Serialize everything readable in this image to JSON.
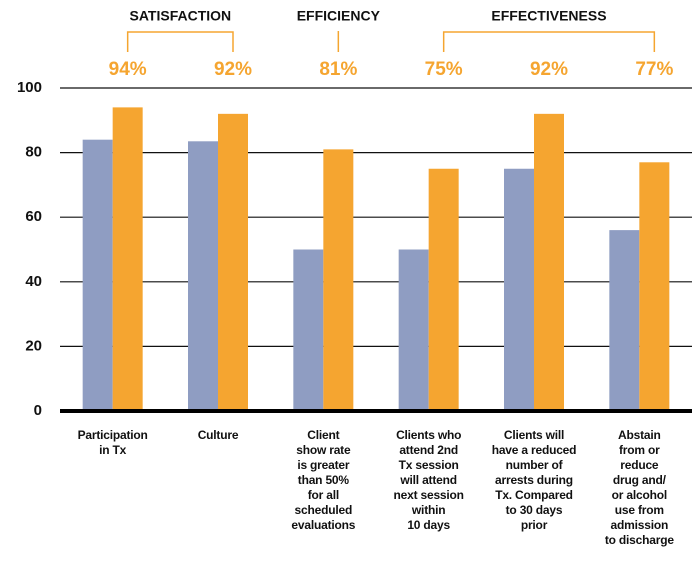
{
  "chart_data": {
    "type": "bar",
    "categories": [
      "Participation\nin Tx",
      "Culture",
      "Client\nshow rate\nis greater\nthan 50%\nfor all\nscheduled\nevaluations",
      "Clients who\nattend 2nd\nTx session\nwill attend\nnext session\nwithin\n10 days",
      "Clients will\nhave a reduced\nnumber of\narrests during\nTx. Compared\nto 30 days\nprior",
      "Abstain\nfrom or\nreduce\ndrug and/\nor alcohol\nuse from\nadmission\nto discharge"
    ],
    "series": [
      {
        "color": "#8f9dc2",
        "values": [
          84,
          83.5,
          50,
          50,
          75,
          56
        ]
      },
      {
        "color": "#f5a530",
        "values": [
          94,
          92,
          81,
          75,
          92,
          77
        ],
        "value_labels": [
          "94%",
          "92%",
          "81%",
          "75%",
          "92%",
          "77%"
        ]
      }
    ],
    "annotations": [
      {
        "text": "SATISFACTION",
        "from": 0,
        "to": 1
      },
      {
        "text": "EFFICIENCY",
        "from": 2,
        "to": 2
      },
      {
        "text": "EFFECTIVENESS",
        "from": 3,
        "to": 5
      }
    ],
    "ylim": [
      0,
      100
    ],
    "yticks": [
      0,
      20,
      40,
      60,
      80,
      100
    ],
    "grid": true
  }
}
